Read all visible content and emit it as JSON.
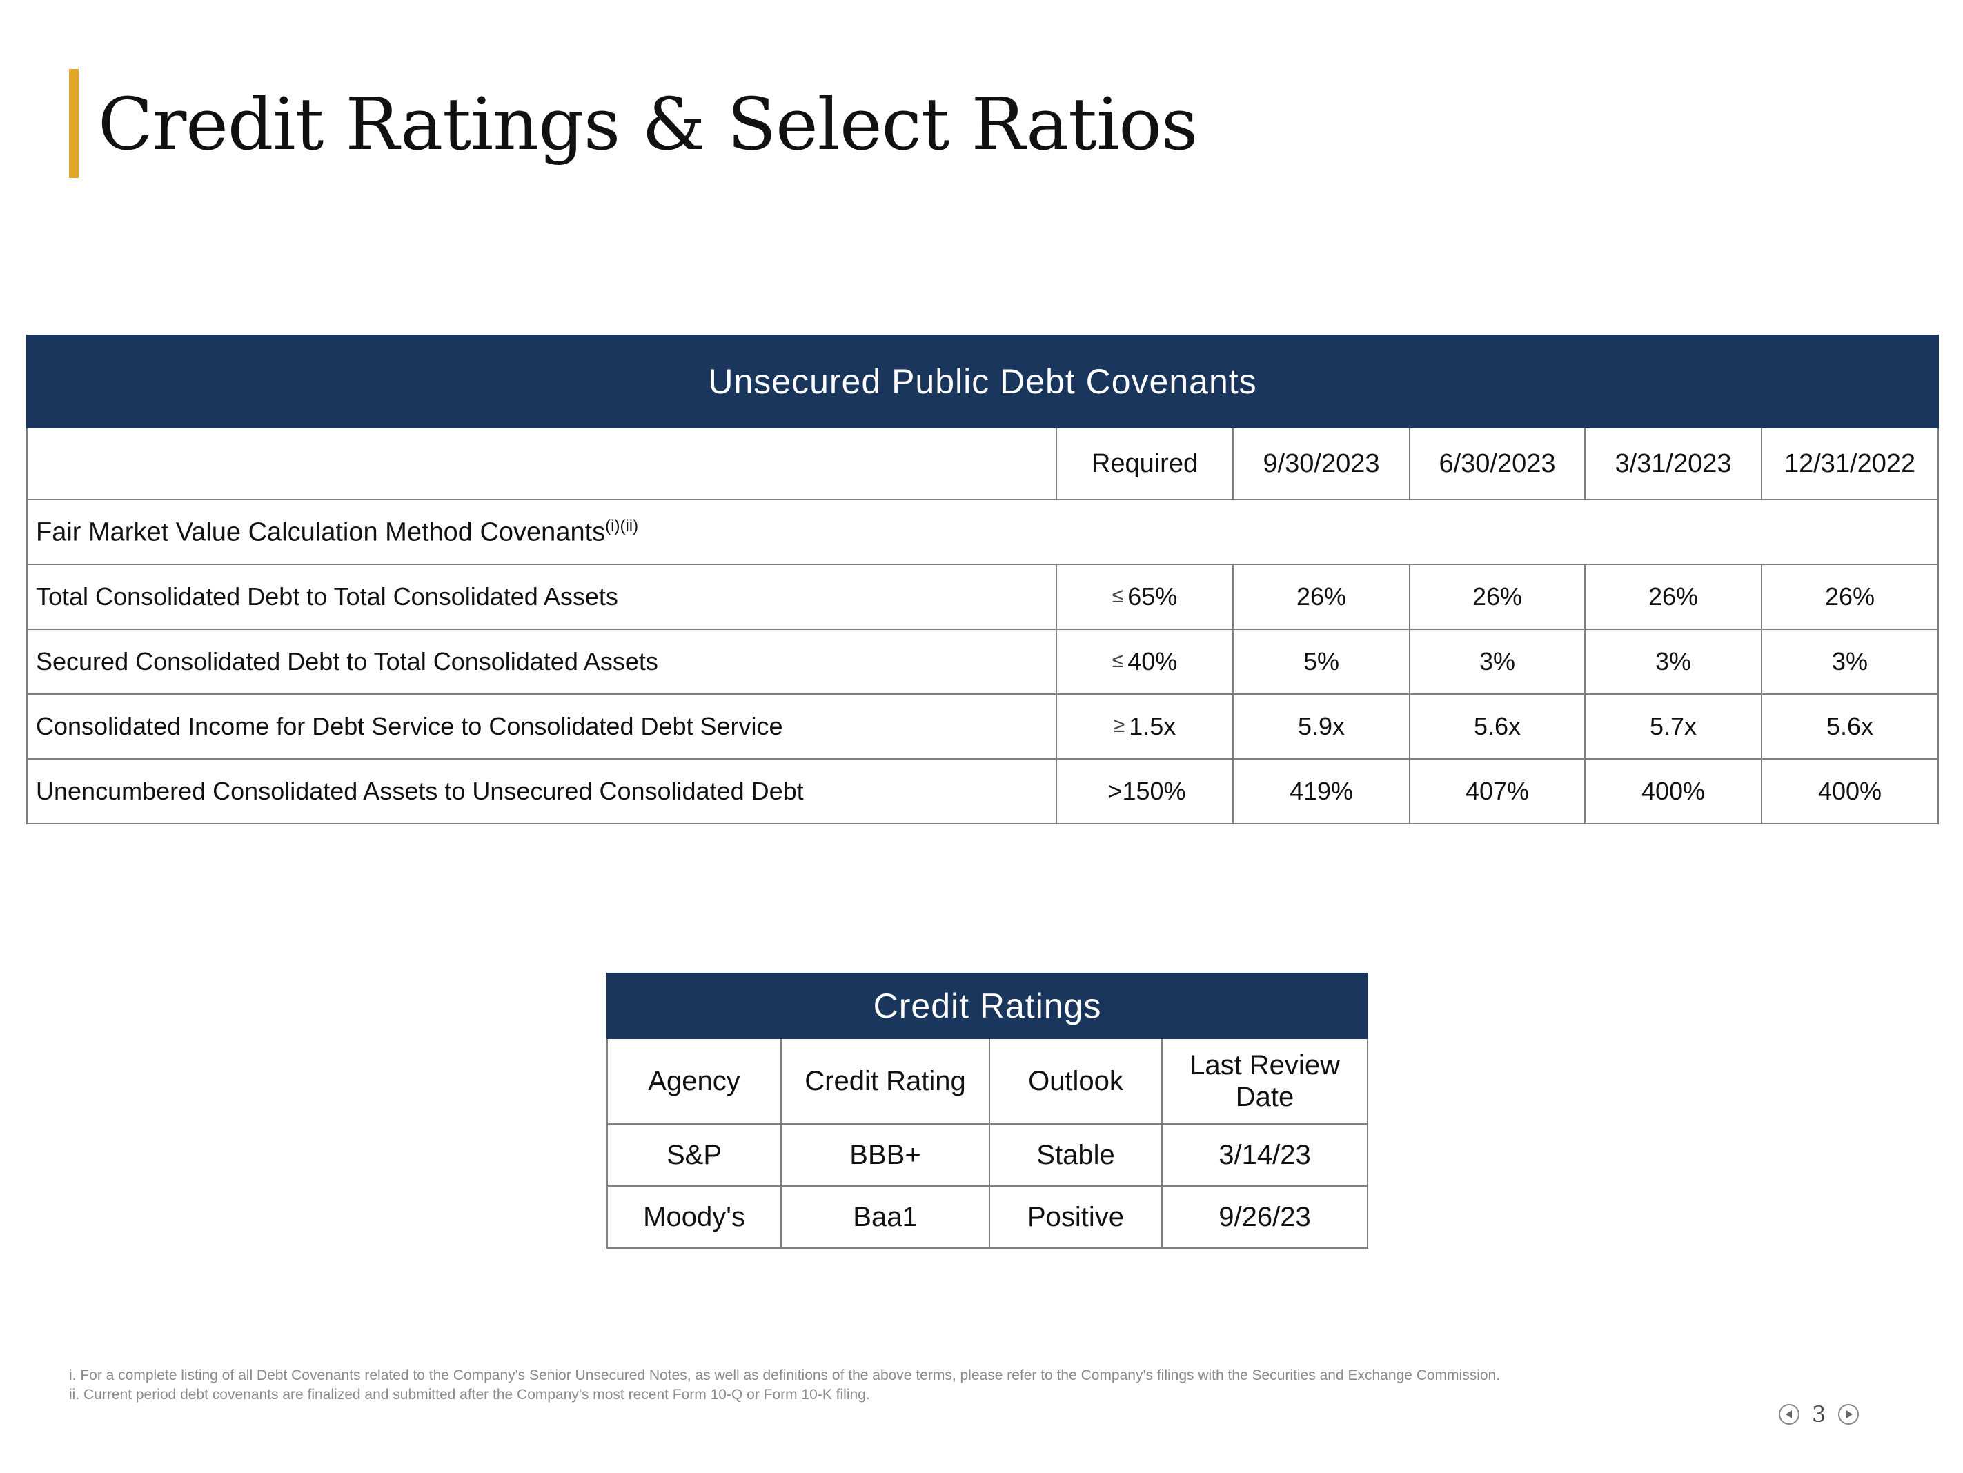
{
  "page": {
    "title": "Credit Ratings & Select Ratios",
    "page_number": "3"
  },
  "colors": {
    "accent": "#e3a52a",
    "header_navy": "#1a365d"
  },
  "covenants": {
    "title": "Unsecured Public Debt Covenants",
    "columns": [
      "Required",
      "9/30/2023",
      "6/30/2023",
      "3/31/2023",
      "12/31/2022"
    ],
    "section_label": "Fair Market Value Calculation Method Covenants",
    "section_superscript": "(i)(ii)",
    "rows": [
      {
        "label": "Total Consolidated Debt to Total Consolidated Assets",
        "symbol": "≤",
        "required": "65%",
        "values": [
          "26%",
          "26%",
          "26%",
          "26%"
        ]
      },
      {
        "label": "Secured Consolidated Debt to Total Consolidated Assets",
        "symbol": "≤",
        "required": "40%",
        "values": [
          "5%",
          "3%",
          "3%",
          "3%"
        ]
      },
      {
        "label": "Consolidated Income for Debt Service to Consolidated Debt Service",
        "symbol": "≥",
        "required": "1.5x",
        "values": [
          "5.9x",
          "5.6x",
          "5.7x",
          "5.6x"
        ]
      },
      {
        "label": "Unencumbered Consolidated Assets to Unsecured Consolidated Debt",
        "symbol": "",
        "required": ">150%",
        "values": [
          "419%",
          "407%",
          "400%",
          "400%"
        ]
      }
    ]
  },
  "ratings": {
    "title": "Credit Ratings",
    "columns": [
      "Agency",
      "Credit Rating",
      "Outlook",
      "Last Review Date"
    ],
    "rows": [
      [
        "S&P",
        "BBB+",
        "Stable",
        "3/14/23"
      ],
      [
        "Moody's",
        "Baa1",
        "Positive",
        "9/26/23"
      ]
    ]
  },
  "footnotes": [
    "i. For a complete listing of all Debt Covenants related to the Company's Senior Unsecured Notes, as well as definitions of the above terms, please refer to the Company's filings with the Securities and Exchange Commission.",
    "ii. Current period debt covenants are finalized and submitted after the Company's most recent Form 10-Q or Form 10-K filing."
  ],
  "icons": {
    "prev": "prev-page-icon",
    "next": "next-page-icon"
  }
}
